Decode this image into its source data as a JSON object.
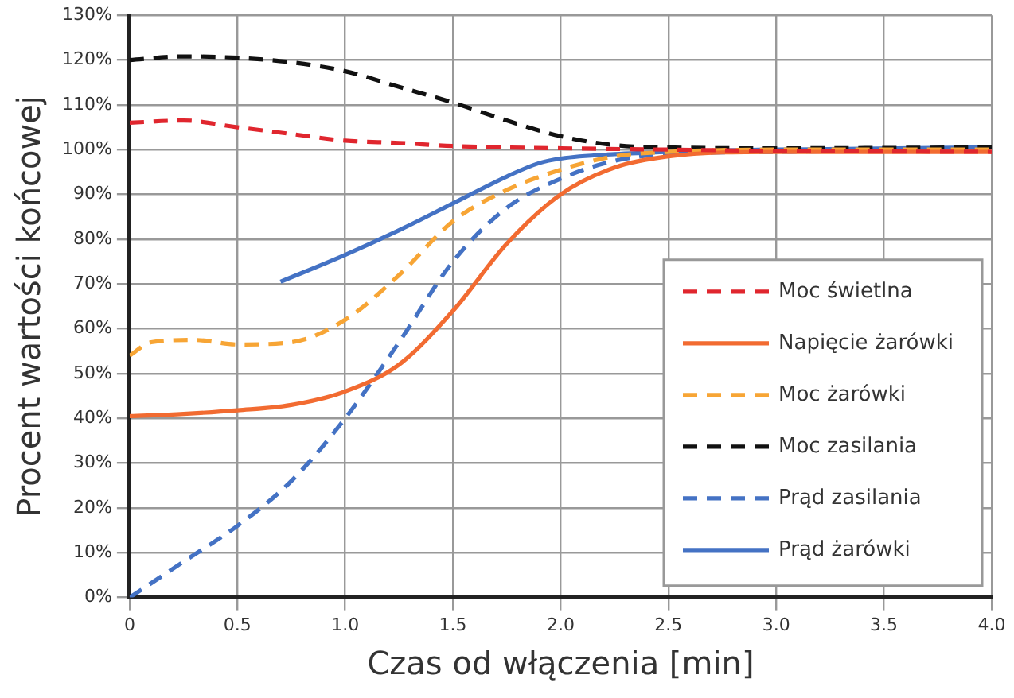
{
  "chart_data": {
    "type": "line",
    "xlabel": "Czas od włączenia [min]",
    "ylabel": "Procent wartości końcowej",
    "xlim": [
      0,
      4
    ],
    "xticks": [
      {
        "value": 0,
        "label": "0"
      },
      {
        "value": 0.5,
        "label": "0.5"
      },
      {
        "value": 1,
        "label": "1.0"
      },
      {
        "value": 1.5,
        "label": "1.5"
      },
      {
        "value": 2,
        "label": "2.0"
      },
      {
        "value": 2.5,
        "label": "2.5"
      },
      {
        "value": 3,
        "label": "3.0"
      },
      {
        "value": 3.5,
        "label": "3.5"
      },
      {
        "value": 4,
        "label": "4.0"
      }
    ],
    "ylim": [
      0,
      130
    ],
    "yticks": [
      {
        "value": 0,
        "label": "0%"
      },
      {
        "value": 10,
        "label": "10%"
      },
      {
        "value": 20,
        "label": "20%"
      },
      {
        "value": 30,
        "label": "30%"
      },
      {
        "value": 40,
        "label": "40%"
      },
      {
        "value": 50,
        "label": "50%"
      },
      {
        "value": 60,
        "label": "60%"
      },
      {
        "value": 70,
        "label": "70%"
      },
      {
        "value": 80,
        "label": "80%"
      },
      {
        "value": 90,
        "label": "90%"
      },
      {
        "value": 100,
        "label": "100%"
      },
      {
        "value": 110,
        "label": "110%"
      },
      {
        "value": 120,
        "label": "120%"
      },
      {
        "value": 130,
        "label": "130%"
      }
    ],
    "grid": true,
    "legend": "right",
    "marker": "none",
    "series": [
      {
        "name": "Moc świetlna",
        "color": "#e0262e",
        "line_style": "dashed",
        "x": [
          0,
          0.25,
          0.5,
          0.75,
          1,
          1.25,
          1.5,
          2,
          2.5,
          3,
          4
        ],
        "values": [
          106,
          106.5,
          105,
          103.5,
          102,
          101.5,
          100.8,
          100.3,
          100,
          99.7,
          99.5
        ]
      },
      {
        "name": "Napięcie żarówki",
        "color": "#f26b31",
        "line_style": "solid",
        "x": [
          0,
          0.25,
          0.5,
          0.75,
          1,
          1.25,
          1.5,
          1.75,
          2,
          2.25,
          2.5,
          3,
          4
        ],
        "values": [
          40.5,
          41,
          41.8,
          43,
          46,
          52,
          64,
          79,
          90,
          96,
          98.5,
          99.5,
          99.5
        ]
      },
      {
        "name": "Moc żarówki",
        "color": "#f7a535",
        "line_style": "dashed",
        "x": [
          0,
          0.1,
          0.3,
          0.5,
          0.75,
          1,
          1.25,
          1.5,
          1.75,
          2,
          2.25,
          2.5,
          3,
          4
        ],
        "values": [
          54,
          57,
          57.5,
          56.5,
          57,
          62,
          72,
          84,
          91,
          95.5,
          98.5,
          99.5,
          100,
          100
        ]
      },
      {
        "name": "Moc zasilania",
        "color": "#111111",
        "line_style": "dashed",
        "x": [
          0,
          0.25,
          0.5,
          0.75,
          1,
          1.25,
          1.5,
          1.75,
          2,
          2.25,
          2.5,
          3,
          4
        ],
        "values": [
          120,
          120.8,
          120.5,
          119.5,
          117.5,
          114,
          110.5,
          106.5,
          103,
          101,
          100.5,
          100.3,
          100.5
        ]
      },
      {
        "name": "Prąd zasilania",
        "color": "#4472c4",
        "line_style": "dashed",
        "x": [
          0,
          0.25,
          0.5,
          0.75,
          1,
          1.25,
          1.5,
          1.75,
          2,
          2.25,
          2.5,
          3,
          4
        ],
        "values": [
          0,
          8,
          16,
          26,
          40,
          57,
          75,
          87,
          93.5,
          97.5,
          99,
          99.5,
          100
        ]
      },
      {
        "name": "Prąd żarówki",
        "color": "#4472c4",
        "line_style": "solid",
        "x": [
          0.7,
          1,
          1.25,
          1.5,
          1.75,
          1.9,
          2,
          2.25,
          2.5,
          3,
          4
        ],
        "values": [
          70.5,
          76.5,
          82,
          88,
          94,
          97,
          98,
          99,
          99.5,
          100,
          100.5
        ]
      }
    ]
  }
}
